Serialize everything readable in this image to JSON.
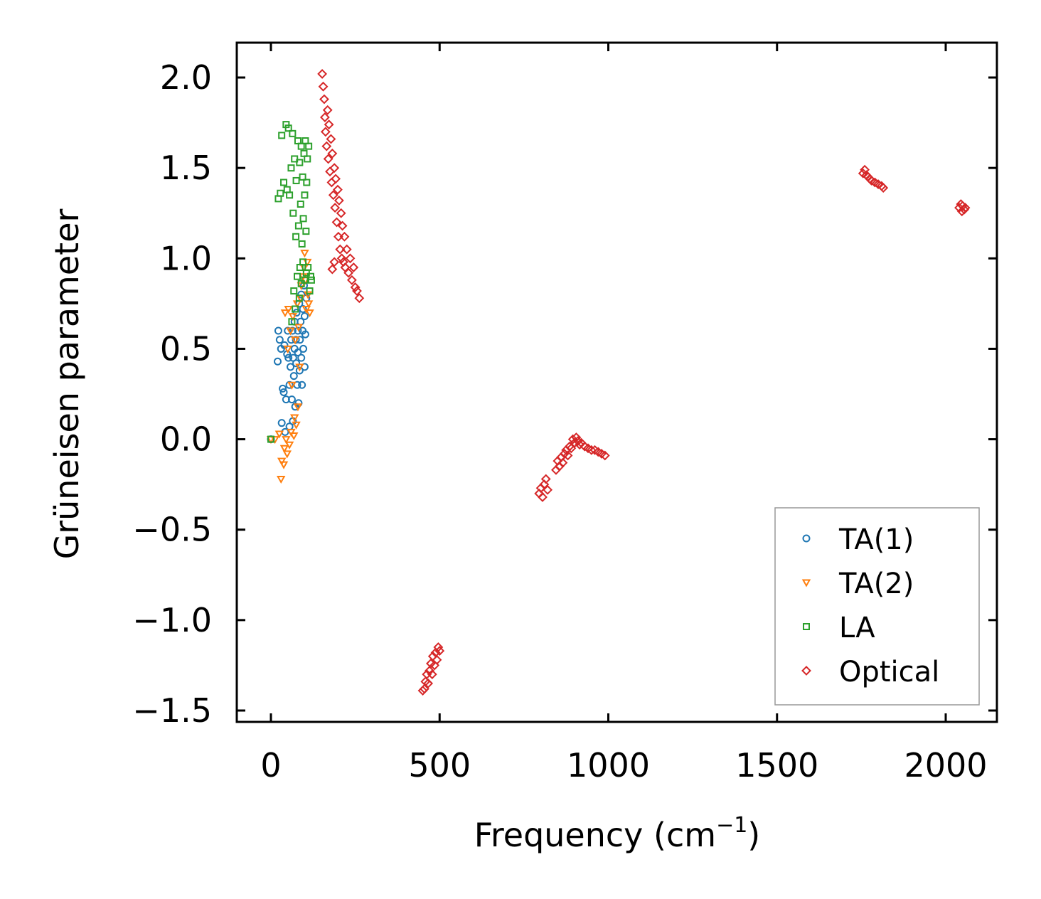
{
  "chart_data": {
    "type": "scatter",
    "title": "",
    "xlabel": "Frequency (cm",
    "xlabel_sup": "−1",
    "xlabel_suffix": ")",
    "ylabel": "Grüneisen parameter",
    "xlim": [
      -100,
      2150
    ],
    "ylim": [
      -1.57,
      2.2
    ],
    "xticks": [
      0,
      500,
      1000,
      1500,
      2000
    ],
    "xtick_labels": [
      "0",
      "500",
      "1000",
      "1500",
      "2000"
    ],
    "yticks": [
      -1.5,
      -1.0,
      -0.5,
      0.0,
      0.5,
      1.0,
      1.5,
      2.0
    ],
    "ytick_labels": [
      "−1.5",
      "−1.0",
      "−0.5",
      "0.0",
      "0.5",
      "1.0",
      "1.5",
      "2.0"
    ],
    "grid": false,
    "legend_position": "lower-right",
    "series": [
      {
        "name": "TA(1)",
        "marker": "circle",
        "color": "#1f77b4",
        "points": [
          [
            0,
            0.0
          ],
          [
            20,
            0.43
          ],
          [
            22,
            0.6
          ],
          [
            26,
            0.55
          ],
          [
            30,
            0.5
          ],
          [
            32,
            0.09
          ],
          [
            35,
            0.28
          ],
          [
            38,
            0.26
          ],
          [
            40,
            0.52
          ],
          [
            42,
            0.04
          ],
          [
            45,
            0.22
          ],
          [
            48,
            0.47
          ],
          [
            50,
            0.6
          ],
          [
            52,
            0.45
          ],
          [
            55,
            0.07
          ],
          [
            55,
            0.3
          ],
          [
            58,
            0.4
          ],
          [
            60,
            0.55
          ],
          [
            62,
            0.22
          ],
          [
            64,
            0.6
          ],
          [
            65,
            0.1
          ],
          [
            66,
            0.45
          ],
          [
            68,
            0.35
          ],
          [
            70,
            0.5
          ],
          [
            70,
            0.65
          ],
          [
            72,
            0.18
          ],
          [
            74,
            0.55
          ],
          [
            75,
            0.42
          ],
          [
            76,
            0.7
          ],
          [
            78,
            0.3
          ],
          [
            80,
            0.6
          ],
          [
            80,
            0.48
          ],
          [
            82,
            0.2
          ],
          [
            84,
            0.75
          ],
          [
            85,
            0.38
          ],
          [
            86,
            0.55
          ],
          [
            88,
            0.65
          ],
          [
            90,
            0.45
          ],
          [
            90,
            0.8
          ],
          [
            92,
            0.3
          ],
          [
            94,
            0.6
          ],
          [
            95,
            0.72
          ],
          [
            96,
            0.5
          ],
          [
            98,
            0.85
          ],
          [
            100,
            0.68
          ],
          [
            100,
            0.4
          ],
          [
            102,
            0.58
          ],
          [
            105,
            0.78
          ]
        ]
      },
      {
        "name": "TA(2)",
        "marker": "triangle-down",
        "color": "#ff7f0e",
        "points": [
          [
            0,
            0.0
          ],
          [
            12,
            0.0
          ],
          [
            25,
            0.03
          ],
          [
            30,
            -0.22
          ],
          [
            32,
            -0.12
          ],
          [
            38,
            -0.14
          ],
          [
            40,
            -0.05
          ],
          [
            42,
            0.7
          ],
          [
            45,
            0.0
          ],
          [
            48,
            -0.08
          ],
          [
            50,
            0.5
          ],
          [
            52,
            0.72
          ],
          [
            55,
            -0.03
          ],
          [
            58,
            0.6
          ],
          [
            60,
            0.04
          ],
          [
            62,
            0.3
          ],
          [
            65,
            0.68
          ],
          [
            68,
            0.02
          ],
          [
            70,
            0.12
          ],
          [
            72,
            0.55
          ],
          [
            75,
            0.08
          ],
          [
            78,
            0.75
          ],
          [
            80,
            0.18
          ],
          [
            82,
            0.62
          ],
          [
            85,
            0.4
          ],
          [
            88,
            0.78
          ],
          [
            90,
            0.85
          ],
          [
            95,
            0.9
          ],
          [
            98,
            0.95
          ],
          [
            100,
            1.03
          ],
          [
            102,
            0.88
          ],
          [
            105,
            0.72
          ],
          [
            108,
            0.98
          ],
          [
            110,
            0.8
          ],
          [
            112,
            0.75
          ],
          [
            115,
            0.7
          ]
        ]
      },
      {
        "name": "LA",
        "marker": "square",
        "color": "#2ca02c",
        "points": [
          [
            0,
            0.0
          ],
          [
            22,
            1.33
          ],
          [
            28,
            1.36
          ],
          [
            32,
            1.68
          ],
          [
            38,
            1.42
          ],
          [
            45,
            1.74
          ],
          [
            48,
            1.38
          ],
          [
            52,
            1.72
          ],
          [
            55,
            1.35
          ],
          [
            60,
            1.5
          ],
          [
            62,
            0.65
          ],
          [
            64,
            1.69
          ],
          [
            66,
            1.25
          ],
          [
            68,
            0.82
          ],
          [
            70,
            1.55
          ],
          [
            72,
            0.72
          ],
          [
            74,
            1.12
          ],
          [
            75,
            1.43
          ],
          [
            78,
            0.9
          ],
          [
            80,
            1.65
          ],
          [
            82,
            1.18
          ],
          [
            84,
            0.78
          ],
          [
            85,
            1.53
          ],
          [
            86,
            0.95
          ],
          [
            88,
            1.3
          ],
          [
            90,
            1.62
          ],
          [
            90,
            0.86
          ],
          [
            92,
            1.08
          ],
          [
            94,
            1.45
          ],
          [
            95,
            0.98
          ],
          [
            96,
            1.22
          ],
          [
            98,
            1.58
          ],
          [
            100,
            0.88
          ],
          [
            100,
            1.35
          ],
          [
            102,
            1.65
          ],
          [
            104,
            1.15
          ],
          [
            105,
            0.92
          ],
          [
            106,
            1.42
          ],
          [
            108,
            1.55
          ],
          [
            110,
            0.95
          ],
          [
            112,
            1.62
          ],
          [
            115,
            0.82
          ],
          [
            118,
            0.9
          ],
          [
            120,
            0.88
          ]
        ]
      },
      {
        "name": "Optical",
        "marker": "diamond",
        "color": "#d62728",
        "clusters": [
          {
            "label": "band-150-260",
            "points": [
              [
                152,
                2.02
              ],
              [
                155,
                1.95
              ],
              [
                158,
                1.88
              ],
              [
                160,
                1.78
              ],
              [
                162,
                1.7
              ],
              [
                165,
                1.62
              ],
              [
                168,
                1.82
              ],
              [
                170,
                1.55
              ],
              [
                172,
                1.74
              ],
              [
                175,
                1.48
              ],
              [
                178,
                1.66
              ],
              [
                180,
                1.42
              ],
              [
                182,
                1.58
              ],
              [
                185,
                1.35
              ],
              [
                188,
                1.5
              ],
              [
                190,
                1.28
              ],
              [
                192,
                1.44
              ],
              [
                195,
                1.2
              ],
              [
                198,
                1.38
              ],
              [
                200,
                1.12
              ],
              [
                202,
                1.32
              ],
              [
                205,
                1.05
              ],
              [
                208,
                1.25
              ],
              [
                210,
                1.0
              ],
              [
                212,
                1.18
              ],
              [
                215,
                0.98
              ],
              [
                218,
                1.12
              ],
              [
                220,
                0.95
              ],
              [
                225,
                1.05
              ],
              [
                230,
                0.92
              ],
              [
                235,
                1.0
              ],
              [
                240,
                0.88
              ],
              [
                245,
                0.95
              ],
              [
                250,
                0.84
              ],
              [
                255,
                0.82
              ],
              [
                262,
                0.78
              ],
              [
                182,
                0.94
              ],
              [
                188,
                0.98
              ]
            ]
          },
          {
            "label": "band-450-500",
            "points": [
              [
                450,
                -1.39
              ],
              [
                455,
                -1.38
              ],
              [
                458,
                -1.34
              ],
              [
                462,
                -1.3
              ],
              [
                466,
                -1.35
              ],
              [
                470,
                -1.28
              ],
              [
                474,
                -1.24
              ],
              [
                478,
                -1.3
              ],
              [
                480,
                -1.2
              ],
              [
                485,
                -1.25
              ],
              [
                488,
                -1.18
              ],
              [
                492,
                -1.22
              ],
              [
                496,
                -1.15
              ],
              [
                500,
                -1.17
              ]
            ]
          },
          {
            "label": "band-795-990",
            "points": [
              [
                795,
                -0.3
              ],
              [
                800,
                -0.27
              ],
              [
                805,
                -0.32
              ],
              [
                810,
                -0.25
              ],
              [
                815,
                -0.22
              ],
              [
                820,
                -0.28
              ],
              [
                845,
                -0.17
              ],
              [
                850,
                -0.12
              ],
              [
                855,
                -0.15
              ],
              [
                860,
                -0.1
              ],
              [
                865,
                -0.13
              ],
              [
                870,
                -0.08
              ],
              [
                875,
                -0.06
              ],
              [
                880,
                -0.09
              ],
              [
                885,
                -0.04
              ],
              [
                890,
                -0.05
              ],
              [
                895,
                0.0
              ],
              [
                900,
                -0.02
              ],
              [
                905,
                0.01
              ],
              [
                910,
                -0.01
              ],
              [
                915,
                -0.03
              ],
              [
                920,
                -0.02
              ],
              [
                930,
                -0.04
              ],
              [
                940,
                -0.05
              ],
              [
                950,
                -0.06
              ],
              [
                960,
                -0.06
              ],
              [
                970,
                -0.07
              ],
              [
                980,
                -0.08
              ],
              [
                990,
                -0.09
              ]
            ]
          },
          {
            "label": "band-1755-1815",
            "points": [
              [
                1755,
                1.47
              ],
              [
                1760,
                1.49
              ],
              [
                1765,
                1.46
              ],
              [
                1770,
                1.45
              ],
              [
                1775,
                1.44
              ],
              [
                1780,
                1.43
              ],
              [
                1790,
                1.42
              ],
              [
                1800,
                1.41
              ],
              [
                1810,
                1.4
              ],
              [
                1815,
                1.39
              ]
            ]
          },
          {
            "label": "band-2040-2060",
            "points": [
              [
                2040,
                1.28
              ],
              [
                2045,
                1.3
              ],
              [
                2048,
                1.26
              ],
              [
                2050,
                1.29
              ],
              [
                2055,
                1.27
              ],
              [
                2058,
                1.28
              ]
            ]
          }
        ]
      }
    ]
  }
}
